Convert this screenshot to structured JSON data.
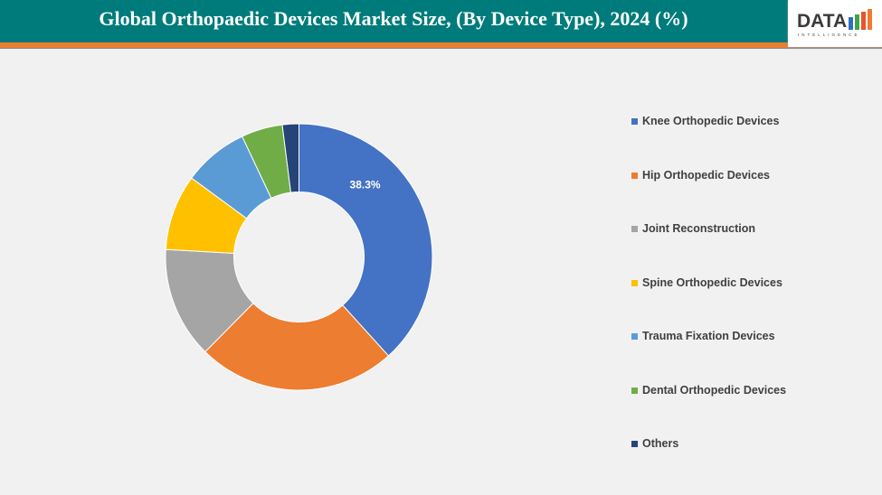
{
  "header": {
    "title": "Global Orthopaedic Devices Market Size, (By Device Type), 2024 (%)"
  },
  "logo": {
    "text": "DATA",
    "subtext": "INTELLIGENCE"
  },
  "chart_data": {
    "type": "pie",
    "donut": true,
    "categories": [
      "Knee Orthopedic Devices",
      "Hip Orthopedic Devices",
      "Joint Reconstruction",
      "Spine Orthopedic Devices",
      "Trauma Fixation Devices",
      "Dental Orthopedic Devices",
      "Others"
    ],
    "values": [
      38.3,
      24.1,
      13.5,
      9.2,
      7.9,
      5.0,
      2.0
    ],
    "colors": [
      "#4472c4",
      "#ed7d31",
      "#a5a5a5",
      "#ffc000",
      "#5b9bd5",
      "#70ad47",
      "#264478"
    ],
    "data_labels": [
      "38.3%",
      "",
      "",
      "",
      "",
      "",
      ""
    ],
    "legend_position": "right"
  }
}
